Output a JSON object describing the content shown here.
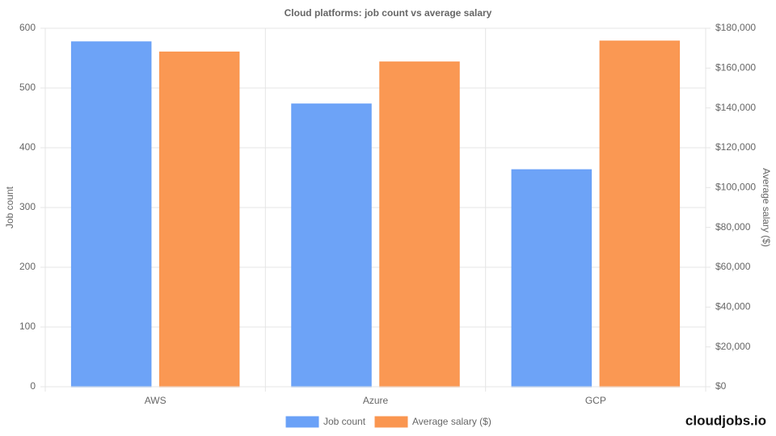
{
  "chart_data": {
    "type": "bar",
    "title": "Cloud platforms: job count vs average salary",
    "categories": [
      "AWS",
      "Azure",
      "GCP"
    ],
    "series": [
      {
        "name": "Job count",
        "color": "#6aa1f7",
        "values": [
          577,
          473,
          363
        ]
      },
      {
        "name": "Average salary ($)",
        "color": "#fa9650",
        "axis": "y2",
        "values": [
          168000,
          163000,
          173500
        ]
      }
    ],
    "y_label": "Job count",
    "y2_label": "Average salary ($)",
    "ylim": [
      0,
      600
    ],
    "yticks": [
      0,
      100,
      200,
      300,
      400,
      500,
      600
    ],
    "y2lim": [
      0,
      180000
    ],
    "y2ticks": [
      {
        "value": 0,
        "label": "$0"
      },
      {
        "value": 20000,
        "label": "$20,000"
      },
      {
        "value": 40000,
        "label": "$40,000"
      },
      {
        "value": 60000,
        "label": "$60,000"
      },
      {
        "value": 80000,
        "label": "$80,000"
      },
      {
        "value": 100000,
        "label": "$100,000"
      },
      {
        "value": 120000,
        "label": "$120,000"
      },
      {
        "value": 140000,
        "label": "$140,000"
      },
      {
        "value": 160000,
        "label": "$160,000"
      },
      {
        "value": 180000,
        "label": "$180,000"
      }
    ],
    "grid": true,
    "legend": "bottom"
  },
  "brand": "cloudjobs.io"
}
